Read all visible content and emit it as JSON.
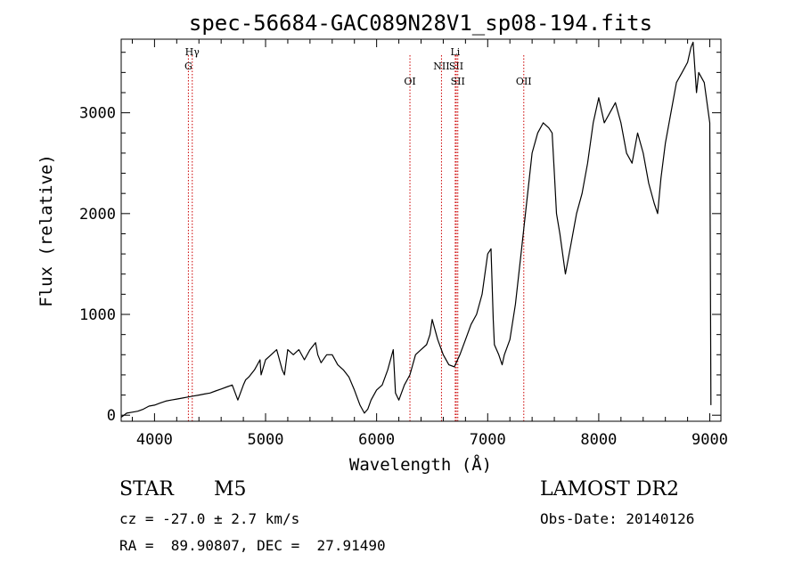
{
  "chart_data": {
    "type": "line",
    "title": "spec-56684-GAC089N28V1_sp08-194.fits",
    "xlabel": "Wavelength (Å)",
    "ylabel": "Flux (relative)",
    "xlim": [
      3700,
      9100
    ],
    "ylim": [
      -60,
      3730
    ],
    "x_ticks": [
      4000,
      5000,
      6000,
      7000,
      8000,
      9000
    ],
    "x_tick_labels": [
      "4000",
      "5000",
      "6000",
      "7000",
      "8000",
      "9000"
    ],
    "y_ticks": [
      0,
      1000,
      2000,
      3000
    ],
    "y_tick_labels": [
      "0",
      "1000",
      "2000",
      "3000"
    ],
    "grid": false,
    "line_color": "#000000",
    "marker_color": "#cc0000",
    "spectral_lines": [
      {
        "label": "Hγ",
        "wavelength": 4340,
        "row": 1
      },
      {
        "label": "G",
        "wavelength": 4305,
        "row": 2
      },
      {
        "label": "OI",
        "wavelength": 6300,
        "row": 3
      },
      {
        "label": "NII",
        "wavelength": 6584,
        "row": 2
      },
      {
        "label": "Li",
        "wavelength": 6708,
        "row": 1
      },
      {
        "label": "SII",
        "wavelength": 6717,
        "row": 2
      },
      {
        "label": "SII",
        "wavelength": 6731,
        "row": 3
      },
      {
        "label": "OII",
        "wavelength": 7325,
        "row": 3
      }
    ],
    "series": [
      {
        "x": [
          3700,
          3750,
          3800,
          3850,
          3900,
          3950,
          4000,
          4050,
          4100,
          4150,
          4200,
          4250,
          4300,
          4350,
          4400,
          4450,
          4500,
          4550,
          4600,
          4650,
          4700,
          4750,
          4800,
          4820,
          4850,
          4900,
          4950,
          4960,
          5000,
          5050,
          5100,
          5150,
          5170,
          5200,
          5250,
          5300,
          5350,
          5400,
          5450,
          5470,
          5500,
          5550,
          5600,
          5650,
          5700,
          5750,
          5800,
          5850,
          5890,
          5920,
          5950,
          6000,
          6050,
          6100,
          6150,
          6170,
          6200,
          6250,
          6300,
          6350,
          6400,
          6450,
          6480,
          6500,
          6550,
          6600,
          6650,
          6700,
          6750,
          6800,
          6850,
          6900,
          6950,
          7000,
          7030,
          7050,
          7060,
          7100,
          7130,
          7150,
          7200,
          7250,
          7300,
          7350,
          7400,
          7450,
          7500,
          7550,
          7580,
          7600,
          7620,
          7650,
          7700,
          7750,
          7800,
          7850,
          7900,
          7950,
          8000,
          8050,
          8100,
          8150,
          8200,
          8250,
          8300,
          8350,
          8400,
          8450,
          8500,
          8530,
          8560,
          8600,
          8650,
          8700,
          8750,
          8800,
          8830,
          8850,
          8880,
          8900,
          8950,
          9000,
          9010
        ],
        "y": [
          -20,
          20,
          30,
          40,
          60,
          90,
          100,
          120,
          140,
          150,
          160,
          170,
          180,
          190,
          200,
          210,
          220,
          240,
          260,
          280,
          300,
          150,
          300,
          350,
          380,
          450,
          550,
          400,
          550,
          600,
          650,
          450,
          400,
          650,
          600,
          650,
          550,
          650,
          720,
          600,
          520,
          600,
          600,
          500,
          450,
          380,
          250,
          100,
          20,
          60,
          150,
          250,
          300,
          450,
          650,
          220,
          150,
          300,
          400,
          600,
          650,
          700,
          800,
          950,
          750,
          600,
          500,
          480,
          600,
          750,
          900,
          1000,
          1200,
          1600,
          1650,
          950,
          700,
          600,
          500,
          600,
          750,
          1100,
          1600,
          2100,
          2600,
          2800,
          2900,
          2850,
          2800,
          2400,
          2000,
          1800,
          1400,
          1700,
          2000,
          2200,
          2500,
          2900,
          3150,
          2900,
          3000,
          3100,
          2900,
          2600,
          2500,
          2800,
          2600,
          2300,
          2100,
          2000,
          2350,
          2700,
          3000,
          3300,
          3400,
          3500,
          3650,
          3700,
          3200,
          3400,
          3300,
          2900,
          100
        ]
      }
    ]
  },
  "footer": {
    "object_class": "STAR",
    "object_subclass": "M5",
    "redshift": "cz = -27.0 ± 2.7 km/s",
    "coordinates": "RA =  89.90807, DEC =  27.91490",
    "survey": "LAMOST DR2",
    "obs_date": "Obs-Date: 20140126"
  }
}
